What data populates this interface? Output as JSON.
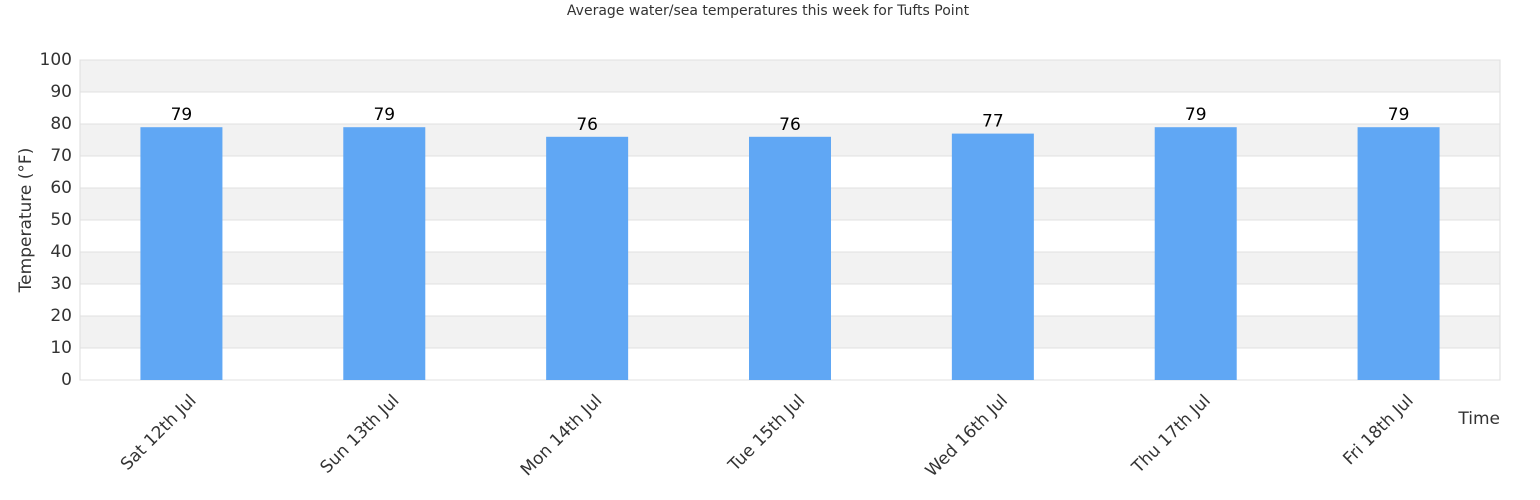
{
  "chart_data": {
    "type": "bar",
    "title": "Average water/sea temperatures this week for Tufts Point",
    "y_label": "Temperature (°F)",
    "x_label": "Time",
    "categories": [
      "Sat 12th Jul",
      "Sun 13th Jul",
      "Mon 14th Jul",
      "Tue 15th Jul",
      "Wed 16th Jul",
      "Thu 17th Jul",
      "Fri 18th Jul"
    ],
    "values": [
      79,
      79,
      76,
      76,
      77,
      79,
      79
    ],
    "color": "#60a7f4",
    "ylim": [
      0,
      100
    ],
    "yticks": [
      0,
      10,
      20,
      30,
      40,
      50,
      60,
      70,
      80,
      90,
      100
    ],
    "grid": true
  }
}
